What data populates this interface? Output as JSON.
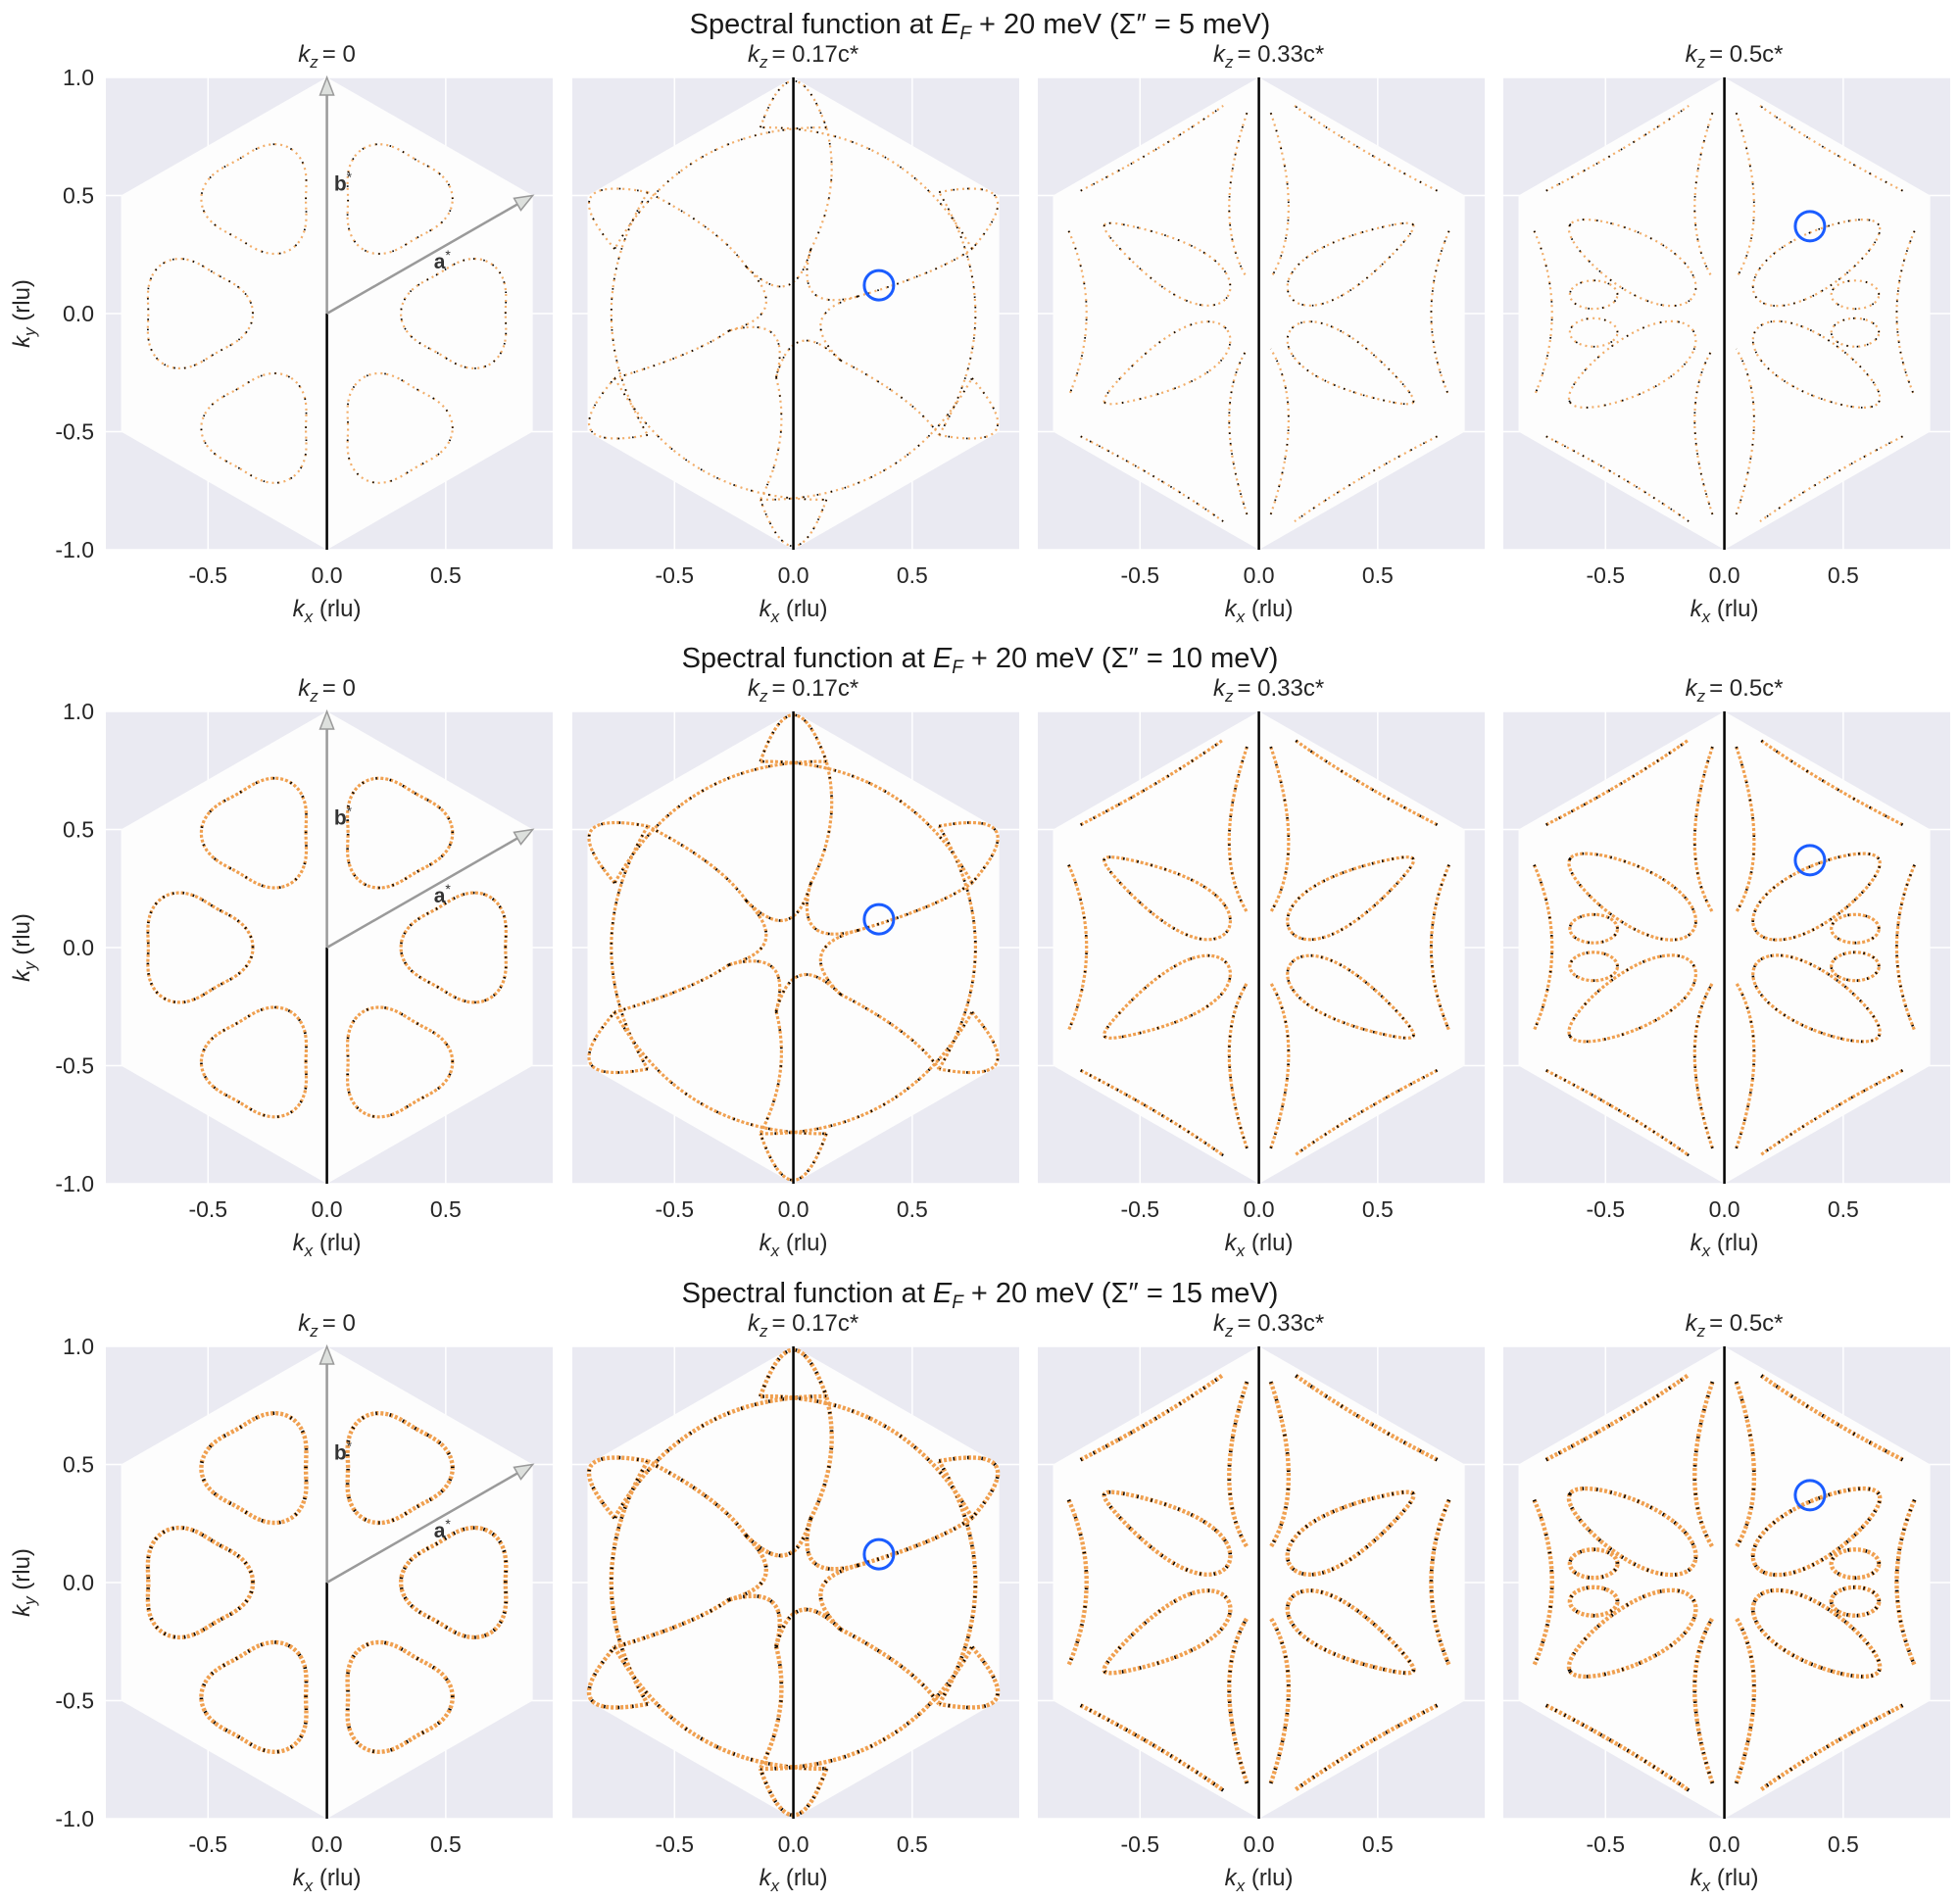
{
  "chart_data": {
    "type": "heatmap",
    "description_title_template": "Spectral function at E_F + 20 meV (Σ″ = X meV)",
    "rows": [
      {
        "title_pre": "Spectral function at ",
        "title_E": "E",
        "title_sub": "F",
        "title_post": " + 20 meV (Σ″ = 5 meV)",
        "sigma_meV": 5
      },
      {
        "title_pre": "Spectral function at ",
        "title_E": "E",
        "title_sub": "F",
        "title_post": " + 20 meV (Σ″ = 10 meV)",
        "sigma_meV": 10
      },
      {
        "title_pre": "Spectral function at ",
        "title_E": "E",
        "title_sub": "F",
        "title_post": " + 20 meV (Σ″ = 15 meV)",
        "sigma_meV": 15
      }
    ],
    "columns": [
      {
        "kz_label": "= 0",
        "kz": 0,
        "marker": null
      },
      {
        "kz_label": "= 0.17c*",
        "kz": 0.17,
        "marker": [
          0.36,
          0.12
        ]
      },
      {
        "kz_label": "= 0.33c*",
        "kz": 0.33,
        "marker": null
      },
      {
        "kz_label": "= 0.5c*",
        "kz": 0.5,
        "marker": [
          0.36,
          0.37
        ]
      }
    ],
    "kz_symbol": "k",
    "kz_sub": "z",
    "xlabel": {
      "sym": "k",
      "sub": "x",
      "unit": " (rlu)"
    },
    "ylabel": {
      "sym": "k",
      "sub": "y",
      "unit": " (rlu)"
    },
    "xlim": [
      -0.93,
      0.95
    ],
    "ylim": [
      -1.0,
      1.0
    ],
    "xticks": [
      {
        "v": -0.5,
        "label": "-0.5"
      },
      {
        "v": 0,
        "label": "0.0"
      },
      {
        "v": 0.5,
        "label": "0.5"
      }
    ],
    "yticks": [
      {
        "v": 1,
        "label": "1.0"
      },
      {
        "v": 0.5,
        "label": "0.5"
      },
      {
        "v": 0,
        "label": "0.0"
      },
      {
        "v": -0.5,
        "label": "-0.5"
      },
      {
        "v": -1,
        "label": "-1.0"
      }
    ],
    "vectors": [
      {
        "label": "b",
        "sup": "*",
        "to": [
          0,
          1
        ]
      },
      {
        "label": "a",
        "sup": "*",
        "to": [
          0.866,
          0.5
        ]
      }
    ],
    "grid": true,
    "colors": {
      "background": "#eaeaf2",
      "zone": "#fdfdfd",
      "intensity_low": "#f0a050",
      "intensity_mid": "#c86a10",
      "intensity_high": "#000000",
      "marker": "#1a5cff",
      "vector": "#9a9a9a"
    }
  }
}
